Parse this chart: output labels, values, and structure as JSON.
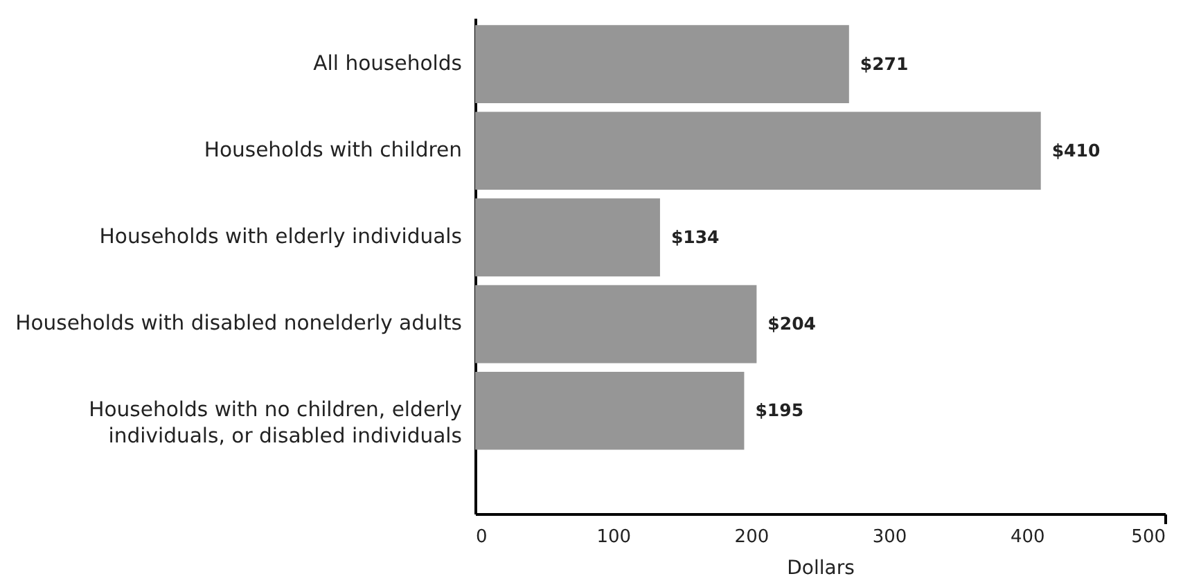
{
  "chart_data": {
    "type": "bar",
    "orientation": "horizontal",
    "categories": [
      "All households",
      "Households with children",
      "Households with elderly individuals",
      "Households with disabled nonelderly adults",
      "Households with no children, elderly individuals, or disabled individuals"
    ],
    "values": [
      271,
      410,
      134,
      204,
      195
    ],
    "color": "#969696",
    "value_labels": [
      "$271",
      "$410",
      "$134",
      "$204",
      "$195"
    ],
    "xlabel": "Dollars",
    "xlim": [
      0,
      500
    ],
    "xticks": [
      0,
      100,
      200,
      300,
      400,
      500
    ]
  }
}
